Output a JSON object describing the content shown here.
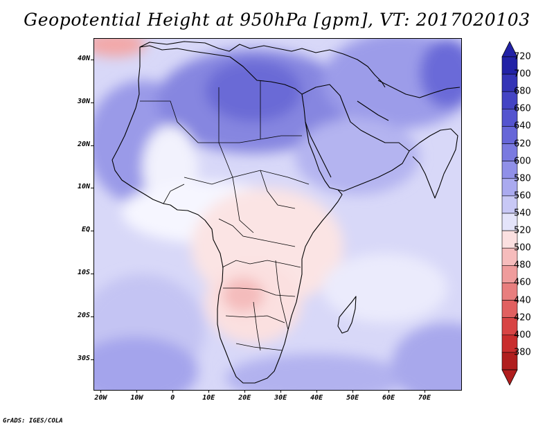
{
  "title": "Geopotential Height at 950hPa [gpm], VT: 2017020103",
  "credit": "GrADS: IGES/COLA",
  "map": {
    "lon_range": [
      -22,
      80
    ],
    "lat_range": [
      -37,
      45
    ],
    "lat_ticks": [
      {
        "value": 40,
        "label": "40N"
      },
      {
        "value": 30,
        "label": "30N"
      },
      {
        "value": 20,
        "label": "20N"
      },
      {
        "value": 10,
        "label": "10N"
      },
      {
        "value": 0,
        "label": "EQ"
      },
      {
        "value": -10,
        "label": "10S"
      },
      {
        "value": -20,
        "label": "20S"
      },
      {
        "value": -30,
        "label": "30S"
      }
    ],
    "lon_ticks": [
      {
        "value": -20,
        "label": "20W"
      },
      {
        "value": -10,
        "label": "10W"
      },
      {
        "value": 0,
        "label": "0"
      },
      {
        "value": 10,
        "label": "10E"
      },
      {
        "value": 20,
        "label": "20E"
      },
      {
        "value": 30,
        "label": "30E"
      },
      {
        "value": 40,
        "label": "40E"
      },
      {
        "value": 50,
        "label": "50E"
      },
      {
        "value": 60,
        "label": "60E"
      },
      {
        "value": 70,
        "label": "70E"
      }
    ]
  },
  "colorbar": {
    "levels": [
      720,
      700,
      680,
      660,
      640,
      620,
      600,
      580,
      560,
      540,
      520,
      500,
      480,
      460,
      440,
      420,
      400,
      380
    ],
    "colors": [
      "#2222a6",
      "#3434b6",
      "#4444c4",
      "#5454cf",
      "#6666d8",
      "#7a7ae0",
      "#9090e8",
      "#aaaaef",
      "#c8c8f5",
      "#e4e4fa",
      "#fbe0e0",
      "#f6bcbc",
      "#ef9c9c",
      "#e87e7e",
      "#e16060",
      "#d84444",
      "#c92d2d",
      "#b01e1e"
    ]
  }
}
